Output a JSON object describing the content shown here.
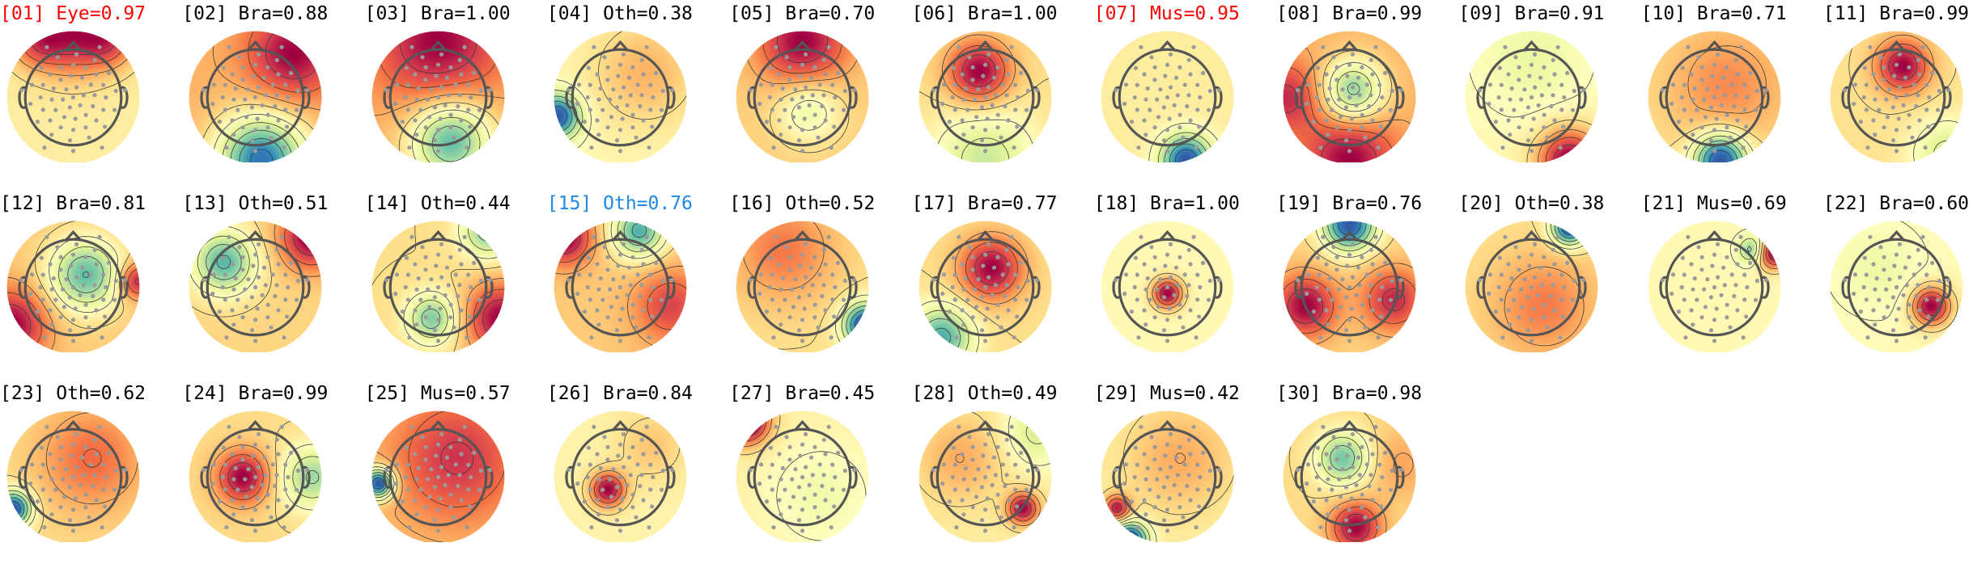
{
  "chart_data": {
    "type": "topomap-grid",
    "title": "",
    "colormap": "Spectral_r",
    "colors": {
      "default_label": "#000000",
      "highlight_red": "#ff0000",
      "highlight_blue": "#1e88e5",
      "electrode": "#9a9a9a",
      "head_outline": "#555555",
      "contour": "#3a3a3a"
    },
    "components": [
      {
        "index": "01",
        "label": "Eye",
        "score": 0.97,
        "title": "[01] Eye=0.97",
        "highlight": "red",
        "blobs": [
          {
            "x": 0.0,
            "y": 1.0,
            "amp": 1.0,
            "w": 0.45
          },
          {
            "x": -0.6,
            "y": 0.9,
            "amp": 0.6,
            "w": 0.3
          },
          {
            "x": 0.6,
            "y": 0.9,
            "amp": 0.6,
            "w": 0.3
          }
        ],
        "base": 0.15
      },
      {
        "index": "02",
        "label": "Bra",
        "score": 0.88,
        "title": "[02] Bra=0.88",
        "highlight": "",
        "blobs": [
          {
            "x": 0.1,
            "y": -1.0,
            "amp": -1.0,
            "w": 0.5
          },
          {
            "x": 0.6,
            "y": 0.7,
            "amp": 0.5,
            "w": 0.5
          }
        ],
        "base": 0.3
      },
      {
        "index": "03",
        "label": "Bra",
        "score": 1.0,
        "title": "[03] Bra=1.00",
        "highlight": "",
        "blobs": [
          {
            "x": 0.2,
            "y": -0.7,
            "amp": -1.1,
            "w": 0.45
          },
          {
            "x": 0.0,
            "y": 0.9,
            "amp": 0.7,
            "w": 0.7
          }
        ],
        "base": 0.4
      },
      {
        "index": "04",
        "label": "Oth",
        "score": 0.38,
        "title": "[04] Oth=0.38",
        "highlight": "",
        "blobs": [
          {
            "x": -1.0,
            "y": -0.3,
            "amp": -1.0,
            "w": 0.25
          },
          {
            "x": 0.4,
            "y": 0.4,
            "amp": 0.3,
            "w": 0.6
          }
        ],
        "base": 0.05
      },
      {
        "index": "05",
        "label": "Bra",
        "score": 0.7,
        "title": "[05] Bra=0.70",
        "highlight": "",
        "blobs": [
          {
            "x": 0.1,
            "y": -0.2,
            "amp": -0.4,
            "w": 0.35
          },
          {
            "x": 0.0,
            "y": 0.9,
            "amp": 0.7,
            "w": 0.5
          }
        ],
        "base": 0.25
      },
      {
        "index": "06",
        "label": "Bra",
        "score": 1.0,
        "title": "[06] Bra=1.00",
        "highlight": "",
        "blobs": [
          {
            "x": -0.1,
            "y": 0.4,
            "amp": 1.0,
            "w": 0.35
          },
          {
            "x": 0.0,
            "y": -1.0,
            "amp": -0.6,
            "w": 0.6
          }
        ],
        "base": 0.25
      },
      {
        "index": "07",
        "label": "Mus",
        "score": 0.95,
        "title": "[07] Mus=0.95",
        "highlight": "red",
        "blobs": [
          {
            "x": 0.3,
            "y": -1.0,
            "amp": -1.1,
            "w": 0.28
          }
        ],
        "base": 0.12
      },
      {
        "index": "08",
        "label": "Bra",
        "score": 0.99,
        "title": "[08] Bra=0.99",
        "highlight": "",
        "blobs": [
          {
            "x": 0.05,
            "y": 0.1,
            "amp": -1.2,
            "w": 0.35
          },
          {
            "x": 0.0,
            "y": -1.0,
            "amp": 0.9,
            "w": 0.5
          },
          {
            "x": -1.0,
            "y": 0.0,
            "amp": 0.7,
            "w": 0.4
          }
        ],
        "base": 0.5
      },
      {
        "index": "09",
        "label": "Bra",
        "score": 0.91,
        "title": "[09] Bra=0.91",
        "highlight": "",
        "blobs": [
          {
            "x": 0.6,
            "y": -1.0,
            "amp": 1.0,
            "w": 0.35
          },
          {
            "x": 0.0,
            "y": 0.6,
            "amp": -0.2,
            "w": 0.6
          }
        ],
        "base": 0.05
      },
      {
        "index": "10",
        "label": "Bra",
        "score": 0.71,
        "title": "[10] Bra=0.71",
        "highlight": "",
        "blobs": [
          {
            "x": 0.1,
            "y": -1.0,
            "amp": -1.1,
            "w": 0.3
          },
          {
            "x": 0.2,
            "y": 0.2,
            "amp": 0.3,
            "w": 0.7
          }
        ],
        "base": 0.15
      },
      {
        "index": "11",
        "label": "Bra",
        "score": 0.99,
        "title": "[11] Bra=0.99",
        "highlight": "",
        "blobs": [
          {
            "x": 0.1,
            "y": 0.5,
            "amp": 1.1,
            "w": 0.3
          },
          {
            "x": 0.8,
            "y": -0.9,
            "amp": -0.6,
            "w": 0.4
          }
        ],
        "base": 0.25
      },
      {
        "index": "12",
        "label": "Bra",
        "score": 0.81,
        "title": "[12] Bra=0.81",
        "highlight": "",
        "blobs": [
          {
            "x": 0.2,
            "y": 0.2,
            "amp": -1.1,
            "w": 0.4
          },
          {
            "x": -1.0,
            "y": -0.6,
            "amp": 0.9,
            "w": 0.4
          },
          {
            "x": 1.0,
            "y": 0.1,
            "amp": 0.8,
            "w": 0.2
          }
        ],
        "base": 0.35
      },
      {
        "index": "13",
        "label": "Oth",
        "score": 0.51,
        "title": "[13] Oth=0.51",
        "highlight": "",
        "blobs": [
          {
            "x": -0.5,
            "y": 0.4,
            "amp": -1.1,
            "w": 0.35
          },
          {
            "x": 0.9,
            "y": 0.8,
            "amp": 1.0,
            "w": 0.35
          }
        ],
        "base": 0.3
      },
      {
        "index": "14",
        "label": "Oth",
        "score": 0.44,
        "title": "[14] Oth=0.44",
        "highlight": "",
        "blobs": [
          {
            "x": 0.8,
            "y": 0.9,
            "amp": -0.9,
            "w": 0.3
          },
          {
            "x": -0.1,
            "y": -0.5,
            "amp": -0.9,
            "w": 0.28
          },
          {
            "x": 1.0,
            "y": -0.5,
            "amp": 1.0,
            "w": 0.4
          }
        ],
        "base": 0.25
      },
      {
        "index": "15",
        "label": "Oth",
        "score": 0.76,
        "title": "[15] Oth=0.76",
        "highlight": "blue",
        "blobs": [
          {
            "x": 0.3,
            "y": 0.9,
            "amp": -1.0,
            "w": 0.3
          },
          {
            "x": -0.9,
            "y": 0.8,
            "amp": 0.8,
            "w": 0.3
          },
          {
            "x": 0.8,
            "y": -0.3,
            "amp": 0.5,
            "w": 0.4
          }
        ],
        "base": 0.3
      },
      {
        "index": "16",
        "label": "Oth",
        "score": 0.52,
        "title": "[16] Oth=0.52",
        "highlight": "",
        "blobs": [
          {
            "x": 1.0,
            "y": -0.6,
            "amp": -1.0,
            "w": 0.25
          },
          {
            "x": -0.3,
            "y": 0.6,
            "amp": 0.3,
            "w": 0.6
          }
        ],
        "base": 0.15
      },
      {
        "index": "17",
        "label": "Bra",
        "score": 0.77,
        "title": "[17] Bra=0.77",
        "highlight": "",
        "blobs": [
          {
            "x": 0.1,
            "y": 0.3,
            "amp": 1.0,
            "w": 0.35
          },
          {
            "x": -0.7,
            "y": -0.8,
            "amp": -1.1,
            "w": 0.35
          }
        ],
        "base": 0.25
      },
      {
        "index": "18",
        "label": "Bra",
        "score": 1.0,
        "title": "[18] Bra=1.00",
        "highlight": "",
        "blobs": [
          {
            "x": 0.0,
            "y": -0.1,
            "amp": 1.2,
            "w": 0.17
          }
        ],
        "base": 0.05
      },
      {
        "index": "19",
        "label": "Bra",
        "score": 0.76,
        "title": "[19] Bra=0.76",
        "highlight": "",
        "blobs": [
          {
            "x": 0.0,
            "y": 1.0,
            "amp": -1.0,
            "w": 0.3
          },
          {
            "x": -0.7,
            "y": -0.3,
            "amp": 0.6,
            "w": 0.35
          },
          {
            "x": 0.7,
            "y": -0.2,
            "amp": 0.5,
            "w": 0.35
          }
        ],
        "base": 0.2
      },
      {
        "index": "20",
        "label": "Oth",
        "score": 0.38,
        "title": "[20] Oth=0.38",
        "highlight": "",
        "blobs": [
          {
            "x": 0.6,
            "y": 0.95,
            "amp": -1.0,
            "w": 0.2
          },
          {
            "x": 0.2,
            "y": -0.3,
            "amp": 0.3,
            "w": 0.6
          }
        ],
        "base": 0.15
      },
      {
        "index": "21",
        "label": "Mus",
        "score": 0.69,
        "title": "[21] Mus=0.69",
        "highlight": "",
        "blobs": [
          {
            "x": 0.95,
            "y": 0.55,
            "amp": 1.2,
            "w": 0.18
          },
          {
            "x": 0.6,
            "y": 0.6,
            "amp": -0.7,
            "w": 0.15
          }
        ],
        "base": 0.05
      },
      {
        "index": "22",
        "label": "Bra",
        "score": 0.6,
        "title": "[22] Bra=0.60",
        "highlight": "",
        "blobs": [
          {
            "x": 0.55,
            "y": -0.3,
            "amp": 1.2,
            "w": 0.22
          },
          {
            "x": -0.3,
            "y": 0.3,
            "amp": -0.2,
            "w": 0.5
          }
        ],
        "base": 0.05
      },
      {
        "index": "23",
        "label": "Oth",
        "score": 0.62,
        "title": "[23] Oth=0.62",
        "highlight": "",
        "blobs": [
          {
            "x": -0.95,
            "y": -0.5,
            "amp": -1.2,
            "w": 0.2
          },
          {
            "x": 0.3,
            "y": 0.3,
            "amp": 0.4,
            "w": 0.6
          }
        ],
        "base": 0.2
      },
      {
        "index": "24",
        "label": "Bra",
        "score": 0.99,
        "title": "[24] Bra=0.99",
        "highlight": "",
        "blobs": [
          {
            "x": -0.2,
            "y": 0.0,
            "amp": 1.1,
            "w": 0.3
          },
          {
            "x": 0.9,
            "y": 0.0,
            "amp": -0.9,
            "w": 0.35
          }
        ],
        "base": 0.3
      },
      {
        "index": "25",
        "label": "Mus",
        "score": 0.57,
        "title": "[25] Mus=0.57",
        "highlight": "",
        "blobs": [
          {
            "x": -0.95,
            "y": -0.1,
            "amp": -1.1,
            "w": 0.17
          },
          {
            "x": 0.3,
            "y": 0.3,
            "amp": 0.4,
            "w": 0.7
          }
        ],
        "base": 0.25
      },
      {
        "index": "26",
        "label": "Bra",
        "score": 0.84,
        "title": "[26] Bra=0.84",
        "highlight": "",
        "blobs": [
          {
            "x": -0.2,
            "y": -0.2,
            "amp": 1.2,
            "w": 0.2
          },
          {
            "x": 0.5,
            "y": 0.5,
            "amp": 0.3,
            "w": 0.4
          }
        ],
        "base": 0.1
      },
      {
        "index": "27",
        "label": "Bra",
        "score": 0.45,
        "title": "[27] Bra=0.45",
        "highlight": "",
        "blobs": [
          {
            "x": -0.9,
            "y": 0.9,
            "amp": 1.2,
            "w": 0.25
          },
          {
            "x": 0.3,
            "y": -0.3,
            "amp": -0.2,
            "w": 0.6
          }
        ],
        "base": 0.1
      },
      {
        "index": "28",
        "label": "Oth",
        "score": 0.49,
        "title": "[28] Oth=0.49",
        "highlight": "",
        "blobs": [
          {
            "x": 0.6,
            "y": -0.5,
            "amp": 1.2,
            "w": 0.18
          },
          {
            "x": 0.8,
            "y": 0.7,
            "amp": -0.5,
            "w": 0.35
          },
          {
            "x": -0.4,
            "y": 0.3,
            "amp": 0.4,
            "w": 0.5
          }
        ],
        "base": 0.15
      },
      {
        "index": "29",
        "label": "Mus",
        "score": 0.42,
        "title": "[29] Mus=0.42",
        "highlight": "",
        "blobs": [
          {
            "x": -0.6,
            "y": -1.0,
            "amp": -1.2,
            "w": 0.2
          },
          {
            "x": -0.8,
            "y": -0.5,
            "amp": 0.8,
            "w": 0.15
          },
          {
            "x": 0.2,
            "y": 0.3,
            "amp": 0.3,
            "w": 0.6
          }
        ],
        "base": 0.1
      },
      {
        "index": "30",
        "label": "Bra",
        "score": 0.98,
        "title": "[30] Bra=0.98",
        "highlight": "",
        "blobs": [
          {
            "x": -0.1,
            "y": 0.3,
            "amp": -1.1,
            "w": 0.3
          },
          {
            "x": 0.1,
            "y": -0.8,
            "amp": 1.1,
            "w": 0.28
          },
          {
            "x": 0.8,
            "y": 0.2,
            "amp": 0.3,
            "w": 0.4
          }
        ],
        "base": 0.3
      }
    ]
  }
}
